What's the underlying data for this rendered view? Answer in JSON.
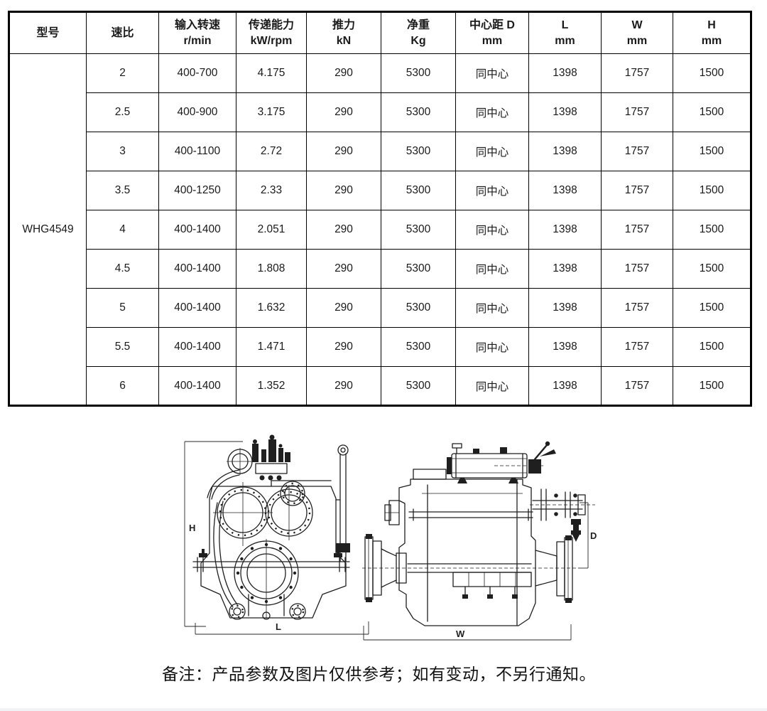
{
  "table": {
    "headers": [
      {
        "line1": "型号",
        "line2": ""
      },
      {
        "line1": "速比",
        "line2": ""
      },
      {
        "line1": "输入转速",
        "line2": "r/min"
      },
      {
        "line1": "传递能力",
        "line2": "kW/rpm"
      },
      {
        "line1": "推力",
        "line2": "kN"
      },
      {
        "line1": "净重",
        "line2": "Kg"
      },
      {
        "line1": "中心距 D",
        "line2": "mm"
      },
      {
        "line1": "L",
        "line2": "mm"
      },
      {
        "line1": "W",
        "line2": "mm"
      },
      {
        "line1": "H",
        "line2": "mm"
      }
    ],
    "model": "WHG4549",
    "rows": [
      [
        "2",
        "400-700",
        "4.175",
        "290",
        "5300",
        "同中心",
        "1398",
        "1757",
        "1500"
      ],
      [
        "2.5",
        "400-900",
        "3.175",
        "290",
        "5300",
        "同中心",
        "1398",
        "1757",
        "1500"
      ],
      [
        "3",
        "400-1100",
        "2.72",
        "290",
        "5300",
        "同中心",
        "1398",
        "1757",
        "1500"
      ],
      [
        "3.5",
        "400-1250",
        "2.33",
        "290",
        "5300",
        "同中心",
        "1398",
        "1757",
        "1500"
      ],
      [
        "4",
        "400-1400",
        "2.051",
        "290",
        "5300",
        "同中心",
        "1398",
        "1757",
        "1500"
      ],
      [
        "4.5",
        "400-1400",
        "1.808",
        "290",
        "5300",
        "同中心",
        "1398",
        "1757",
        "1500"
      ],
      [
        "5",
        "400-1400",
        "1.632",
        "290",
        "5300",
        "同中心",
        "1398",
        "1757",
        "1500"
      ],
      [
        "5.5",
        "400-1400",
        "1.471",
        "290",
        "5300",
        "同中心",
        "1398",
        "1757",
        "1500"
      ],
      [
        "6",
        "400-1400",
        "1.352",
        "290",
        "5300",
        "同中心",
        "1398",
        "1757",
        "1500"
      ]
    ]
  },
  "diagrams": {
    "front_view": {
      "height_label": "H",
      "length_label": "L"
    },
    "side_view": {
      "width_label": "W",
      "center_distance_label": "D"
    }
  },
  "note": "备注：产品参数及图片仅供参考；如有变动，不另行通知。",
  "colors": {
    "border": "#000000",
    "text": "#1a1a1a",
    "line_art": "#1f1f1f",
    "background": "#ffffff"
  }
}
